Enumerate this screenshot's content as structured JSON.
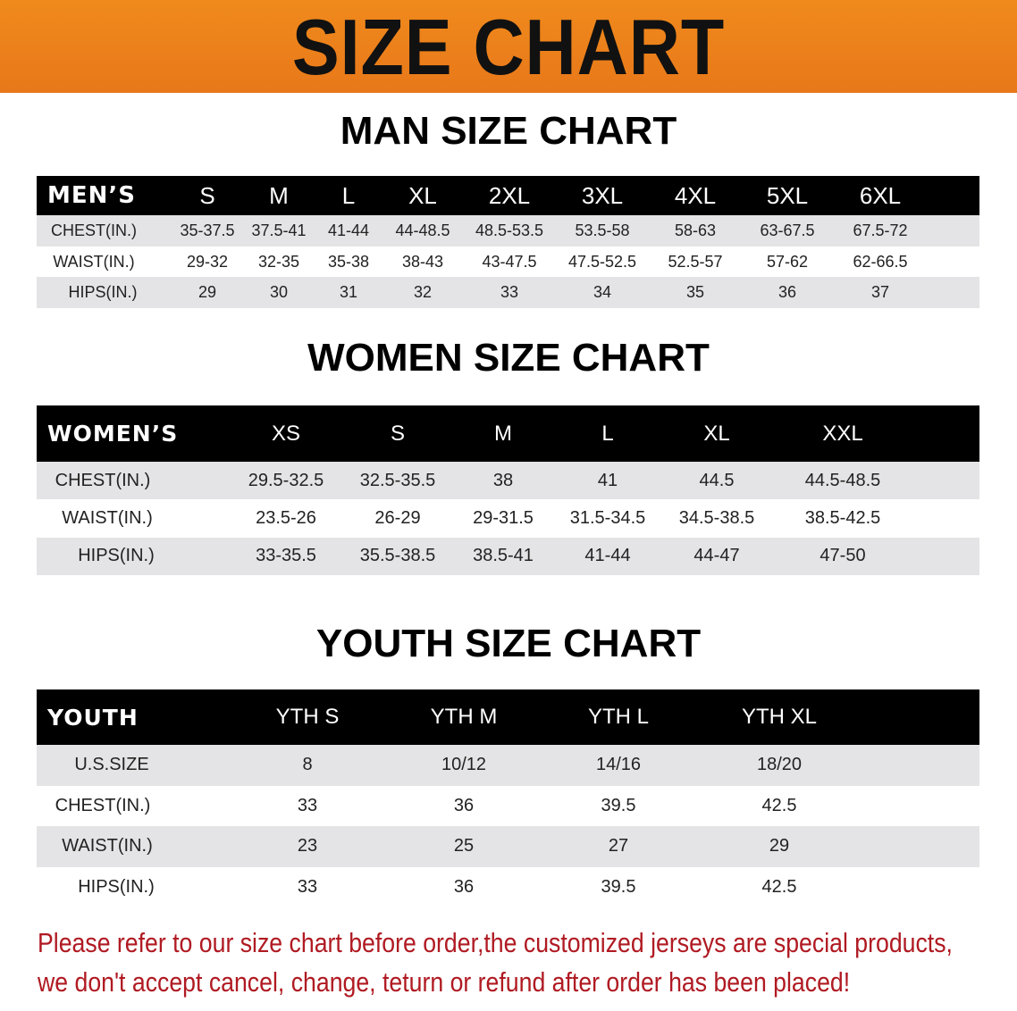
{
  "banner": {
    "title": "SIZE CHART",
    "color": "#ec801b"
  },
  "men": {
    "title": "MAN SIZE CHART",
    "header": [
      "MEN’S",
      "S",
      "M",
      "L",
      "XL",
      "2XL",
      "3XL",
      "4XL",
      "5XL",
      "6XL"
    ],
    "rows": [
      [
        "CHEST(IN.)",
        "35-37.5",
        "37.5-41",
        "41-44",
        "44-48.5",
        "48.5-53.5",
        "53.5-58",
        "58-63",
        "63-67.5",
        "67.5-72"
      ],
      [
        "WAIST(IN.)",
        "29-32",
        "32-35",
        "35-38",
        "38-43",
        "43-47.5",
        "47.5-52.5",
        "52.5-57",
        "57-62",
        "62-66.5"
      ],
      [
        "HIPS(IN.)",
        "29",
        "30",
        "31",
        "32",
        "33",
        "34",
        "35",
        "36",
        "37"
      ]
    ]
  },
  "women": {
    "title": "WOMEN SIZE CHART",
    "header": [
      "WOMEN’S",
      "XS",
      "S",
      "M",
      "L",
      "XL",
      "XXL"
    ],
    "rows": [
      [
        "CHEST(IN.)",
        "29.5-32.5",
        "32.5-35.5",
        "38",
        "41",
        "44.5",
        "44.5-48.5"
      ],
      [
        "WAIST(IN.)",
        "23.5-26",
        "26-29",
        "29-31.5",
        "31.5-34.5",
        "34.5-38.5",
        "38.5-42.5"
      ],
      [
        "HIPS(IN.)",
        "33-35.5",
        "35.5-38.5",
        "38.5-41",
        "41-44",
        "44-47",
        "47-50"
      ]
    ]
  },
  "youth": {
    "title": "YOUTH SIZE CHART",
    "header": [
      "YOUTH",
      "YTH S",
      "YTH M",
      "YTH L",
      "YTH XL"
    ],
    "rows": [
      [
        "U.S.SIZE",
        "8",
        "10/12",
        "14/16",
        "18/20"
      ],
      [
        "CHEST(IN.)",
        "33",
        "36",
        "39.5",
        "42.5"
      ],
      [
        "WAIST(IN.)",
        "23",
        "25",
        "27",
        "29"
      ],
      [
        "HIPS(IN.)",
        "33",
        "36",
        "39.5",
        "42.5"
      ]
    ]
  },
  "notice": {
    "line1": "Please refer to our size chart before order,the customized jerseys are special products,",
    "line2": "we don't accept cancel, change, teturn or refund after order has been placed!",
    "color": "#b01a22"
  }
}
